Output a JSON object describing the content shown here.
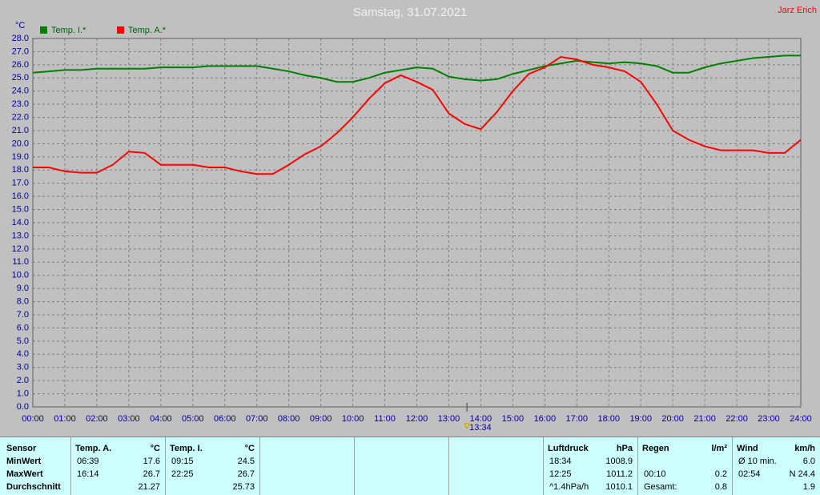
{
  "chart_data": {
    "type": "line",
    "title": "Samstag, 31.07.2021",
    "corner_label": "Jarz Erich",
    "y_label": "°C",
    "x": [
      0,
      0.5,
      1,
      1.5,
      2,
      2.5,
      3,
      3.5,
      4,
      4.5,
      5,
      5.5,
      6,
      6.5,
      7,
      7.5,
      8,
      8.5,
      9,
      9.5,
      10,
      10.5,
      11,
      11.5,
      12,
      12.5,
      13,
      13.5,
      14,
      14.5,
      15,
      15.5,
      16,
      16.5,
      17,
      17.5,
      18,
      18.5,
      19,
      19.5,
      20,
      20.5,
      21,
      21.5,
      22,
      22.5,
      23,
      23.5,
      24
    ],
    "series": [
      {
        "name": "Temp. I.*",
        "color": "#008000",
        "values": [
          25.4,
          25.5,
          25.6,
          25.6,
          25.7,
          25.7,
          25.7,
          25.7,
          25.8,
          25.8,
          25.8,
          25.9,
          25.9,
          25.9,
          25.9,
          25.7,
          25.5,
          25.2,
          25.0,
          24.7,
          24.7,
          25.0,
          25.4,
          25.6,
          25.8,
          25.7,
          25.1,
          24.9,
          24.8,
          24.9,
          25.3,
          25.6,
          25.9,
          26.1,
          26.3,
          26.2,
          26.1,
          26.2,
          26.1,
          25.9,
          25.4,
          25.4,
          25.8,
          26.1,
          26.3,
          26.5,
          26.6,
          26.7,
          26.7
        ]
      },
      {
        "name": "Temp. A.*",
        "color": "#ff0000",
        "values": [
          18.2,
          18.2,
          17.9,
          17.8,
          17.8,
          18.4,
          19.4,
          19.3,
          18.4,
          18.4,
          18.4,
          18.2,
          18.2,
          17.9,
          17.7,
          17.7,
          18.4,
          19.2,
          19.8,
          20.8,
          22.0,
          23.4,
          24.6,
          25.2,
          24.7,
          24.1,
          22.3,
          21.5,
          21.1,
          22.4,
          24.0,
          25.3,
          25.8,
          26.6,
          26.4,
          26.0,
          25.8,
          25.5,
          24.7,
          23.0,
          21.0,
          20.3,
          19.8,
          19.5,
          19.5,
          19.5,
          19.3,
          19.3,
          20.3
        ]
      }
    ],
    "xlim": [
      0,
      24
    ],
    "xticks": [
      {
        "value": 0,
        "label": "00:00"
      },
      {
        "value": 1,
        "label": "01:00"
      },
      {
        "value": 2,
        "label": "02:00"
      },
      {
        "value": 3,
        "label": "03:00"
      },
      {
        "value": 4,
        "label": "04:00"
      },
      {
        "value": 5,
        "label": "05:00"
      },
      {
        "value": 6,
        "label": "06:00"
      },
      {
        "value": 7,
        "label": "07:00"
      },
      {
        "value": 8,
        "label": "08:00"
      },
      {
        "value": 9,
        "label": "09:00"
      },
      {
        "value": 10,
        "label": "10:00"
      },
      {
        "value": 11,
        "label": "11:00"
      },
      {
        "value": 12,
        "label": "12:00"
      },
      {
        "value": 13,
        "label": "13:00"
      },
      {
        "value": 14,
        "label": "14:00"
      },
      {
        "value": 15,
        "label": "15:00"
      },
      {
        "value": 16,
        "label": "16:00"
      },
      {
        "value": 17,
        "label": "17:00"
      },
      {
        "value": 18,
        "label": "18:00"
      },
      {
        "value": 19,
        "label": "19:00"
      },
      {
        "value": 20,
        "label": "20:00"
      },
      {
        "value": 21,
        "label": "21:00"
      },
      {
        "value": 22,
        "label": "22:00"
      },
      {
        "value": 23,
        "label": "23:00"
      },
      {
        "value": 24,
        "label": "24:00"
      }
    ],
    "ylim": [
      0,
      28
    ],
    "yticks": [
      {
        "value": 0,
        "label": "0.0"
      },
      {
        "value": 1,
        "label": "1.0"
      },
      {
        "value": 2,
        "label": "2.0"
      },
      {
        "value": 3,
        "label": "3.0"
      },
      {
        "value": 4,
        "label": "4.0"
      },
      {
        "value": 5,
        "label": "5.0"
      },
      {
        "value": 6,
        "label": "6.0"
      },
      {
        "value": 7,
        "label": "7.0"
      },
      {
        "value": 8,
        "label": "8.0"
      },
      {
        "value": 9,
        "label": "9.0"
      },
      {
        "value": 10,
        "label": "10.0"
      },
      {
        "value": 11,
        "label": "11.0"
      },
      {
        "value": 12,
        "label": "12.0"
      },
      {
        "value": 13,
        "label": "13.0"
      },
      {
        "value": 14,
        "label": "14.0"
      },
      {
        "value": 15,
        "label": "15.0"
      },
      {
        "value": 16,
        "label": "16.0"
      },
      {
        "value": 17,
        "label": "17.0"
      },
      {
        "value": 18,
        "label": "18.0"
      },
      {
        "value": 19,
        "label": "19.0"
      },
      {
        "value": 20,
        "label": "20.0"
      },
      {
        "value": 21,
        "label": "21.0"
      },
      {
        "value": 22,
        "label": "22.0"
      },
      {
        "value": 23,
        "label": "23.0"
      },
      {
        "value": 24,
        "label": "24.0"
      },
      {
        "value": 25,
        "label": "25.0"
      },
      {
        "value": 26,
        "label": "26.0"
      },
      {
        "value": 27,
        "label": "27.0"
      },
      {
        "value": 28,
        "label": "28.0"
      }
    ],
    "grid": true,
    "marker": {
      "x": 13.5667,
      "label": "13:34"
    }
  },
  "table": {
    "sensor": {
      "header": "Sensor",
      "rows": [
        "MinWert",
        "MaxWert",
        "Durchschnitt"
      ]
    },
    "blocks": [
      {
        "header": "Temp. A.",
        "unit": "°C",
        "rows": [
          {
            "time": "06:39",
            "value": "17.6"
          },
          {
            "time": "16:14",
            "value": "26.7"
          },
          {
            "value": "21.27"
          }
        ]
      },
      {
        "header": "Temp. I.",
        "unit": "°C",
        "rows": [
          {
            "time": "09:15",
            "value": "24.5"
          },
          {
            "time": "22:25",
            "value": "26.7"
          },
          {
            "value": "25.73"
          }
        ]
      },
      {
        "header": "Luftdruck",
        "unit": "hPa",
        "rows": [
          {
            "time": "18:34",
            "value": "1008.9"
          },
          {
            "time": "12:25",
            "value": "1011.2"
          },
          {
            "time": "^1.4hPa/h",
            "value": "1010.1"
          }
        ]
      },
      {
        "header": "Regen",
        "unit": "l/m²",
        "rows": [
          null,
          {
            "time": "00:10",
            "value": "0.2"
          },
          {
            "time": "Gesamt:",
            "value": "0.8"
          }
        ]
      },
      {
        "header": "Wind",
        "unit": "km/h",
        "rows": [
          {
            "time": "Ø 10 min.",
            "value": "6.0"
          },
          {
            "time": "02:54",
            "value": "N 24.4"
          },
          {
            "value": "1.9"
          }
        ]
      }
    ]
  }
}
